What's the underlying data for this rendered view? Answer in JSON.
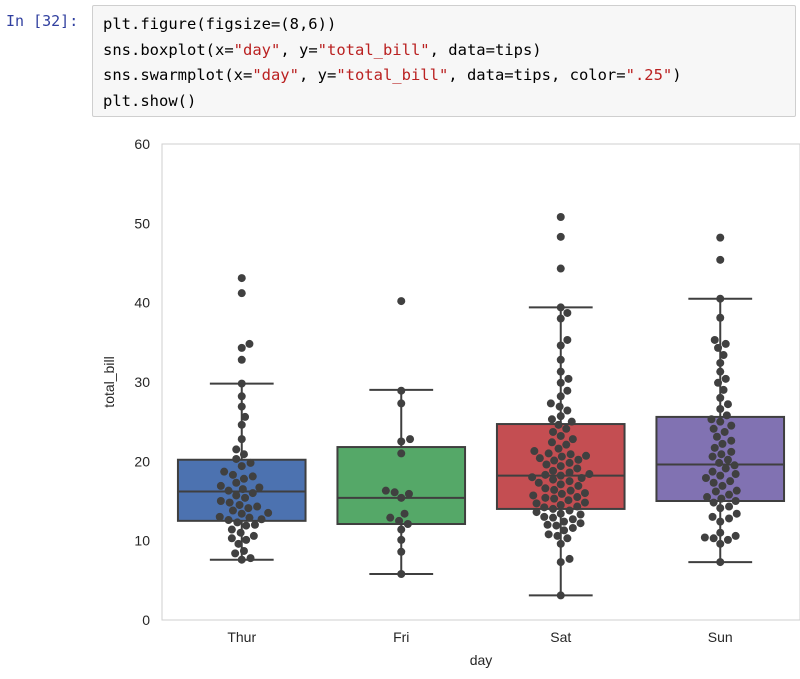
{
  "cell": {
    "prompt": "In [32]:",
    "code": [
      [
        {
          "t": "plt.figure(figsize=(8,6))"
        }
      ],
      [
        {
          "t": "sns.boxplot(x="
        },
        {
          "t": "\"day\"",
          "s": 1
        },
        {
          "t": ", y="
        },
        {
          "t": "\"total_bill\"",
          "s": 1
        },
        {
          "t": ", data=tips)"
        }
      ],
      [
        {
          "t": "sns.swarmplot(x="
        },
        {
          "t": "\"day\"",
          "s": 1
        },
        {
          "t": ", y="
        },
        {
          "t": "\"total_bill\"",
          "s": 1
        },
        {
          "t": ", data=tips, color="
        },
        {
          "t": "\".25\"",
          "s": 1
        },
        {
          "t": ")"
        }
      ],
      [
        {
          "t": "plt.show()"
        }
      ]
    ]
  },
  "chart_data": {
    "type": "box",
    "xlabel": "day",
    "ylabel": "total_bill",
    "ylim": [
      0,
      60
    ],
    "yticks": [
      0,
      10,
      20,
      30,
      40,
      50,
      60
    ],
    "grid": true,
    "categories": [
      "Thur",
      "Fri",
      "Sat",
      "Sun"
    ],
    "boxes": [
      {
        "category": "Thur",
        "color": "#4c72b0",
        "whisker_low": 7.6,
        "q1": 12.5,
        "median": 16.2,
        "q3": 20.2,
        "whisker_high": 29.8
      },
      {
        "category": "Fri",
        "color": "#55a868",
        "whisker_low": 5.8,
        "q1": 12.1,
        "median": 15.4,
        "q3": 21.8,
        "whisker_high": 29.0
      },
      {
        "category": "Sat",
        "color": "#c44e52",
        "whisker_low": 3.1,
        "q1": 14.0,
        "median": 18.2,
        "q3": 24.7,
        "whisker_high": 39.4
      },
      {
        "category": "Sun",
        "color": "#8172b2",
        "whisker_low": 7.3,
        "q1": 15.0,
        "median": 19.6,
        "q3": 25.6,
        "whisker_high": 40.5
      }
    ],
    "points_color": "#404040",
    "points": [
      [
        7.6,
        7.8,
        8.4,
        8.7,
        9.6,
        10.1,
        10.3,
        10.6,
        11.0,
        11.4,
        11.9,
        12.0,
        12.3,
        12.6,
        12.7,
        12.9,
        13.0,
        13.4,
        13.5,
        13.8,
        14.1,
        14.3,
        14.5,
        14.8,
        15.0,
        15.4,
        15.7,
        16.0,
        16.3,
        16.5,
        16.7,
        16.9,
        17.3,
        17.8,
        18.1,
        18.3,
        18.7,
        19.4,
        19.8,
        20.3,
        20.9,
        21.5,
        22.8,
        24.6,
        25.6,
        26.9,
        28.2,
        29.8,
        32.8,
        34.3,
        34.8,
        41.2,
        43.1
      ],
      [
        5.8,
        8.6,
        10.1,
        11.4,
        12.1,
        12.5,
        12.9,
        13.4,
        15.4,
        15.9,
        16.1,
        16.3,
        21.0,
        22.5,
        22.8,
        27.3,
        28.9,
        40.2
      ],
      [
        3.1,
        7.3,
        7.7,
        9.6,
        10.3,
        10.6,
        10.8,
        11.3,
        11.6,
        11.9,
        12.0,
        12.2,
        12.4,
        12.7,
        12.9,
        13.0,
        13.3,
        13.4,
        13.6,
        13.8,
        14.0,
        14.2,
        14.3,
        14.5,
        14.7,
        14.8,
        15.1,
        15.3,
        15.4,
        15.5,
        15.7,
        15.9,
        16.0,
        16.3,
        16.4,
        16.6,
        16.9,
        17.1,
        17.3,
        17.5,
        17.7,
        17.9,
        18.0,
        18.2,
        18.3,
        18.4,
        18.6,
        18.8,
        19.1,
        19.4,
        19.6,
        19.8,
        20.1,
        20.2,
        20.4,
        20.6,
        20.7,
        20.9,
        21.0,
        21.3,
        21.6,
        22.1,
        22.4,
        22.8,
        23.2,
        23.7,
        24.1,
        24.6,
        25.0,
        25.3,
        25.7,
        26.4,
        26.9,
        27.3,
        28.2,
        28.9,
        29.9,
        30.4,
        31.3,
        32.8,
        34.6,
        35.3,
        38.0,
        38.7,
        39.4,
        44.3,
        48.3,
        50.8
      ],
      [
        7.3,
        9.6,
        10.1,
        10.3,
        10.4,
        10.6,
        11.0,
        12.4,
        12.8,
        13.0,
        13.4,
        14.1,
        14.3,
        14.8,
        15.0,
        15.3,
        15.5,
        15.8,
        16.2,
        16.3,
        16.9,
        17.3,
        17.5,
        17.9,
        18.2,
        18.4,
        18.7,
        19.1,
        19.5,
        19.8,
        20.2,
        20.6,
        20.9,
        21.2,
        21.7,
        22.2,
        22.6,
        23.1,
        23.7,
        24.1,
        24.5,
        25.0,
        25.3,
        25.8,
        26.6,
        27.2,
        28.0,
        29.0,
        29.9,
        30.4,
        31.3,
        32.4,
        33.4,
        34.3,
        34.8,
        35.3,
        38.1,
        40.5,
        45.4,
        48.2
      ]
    ]
  }
}
